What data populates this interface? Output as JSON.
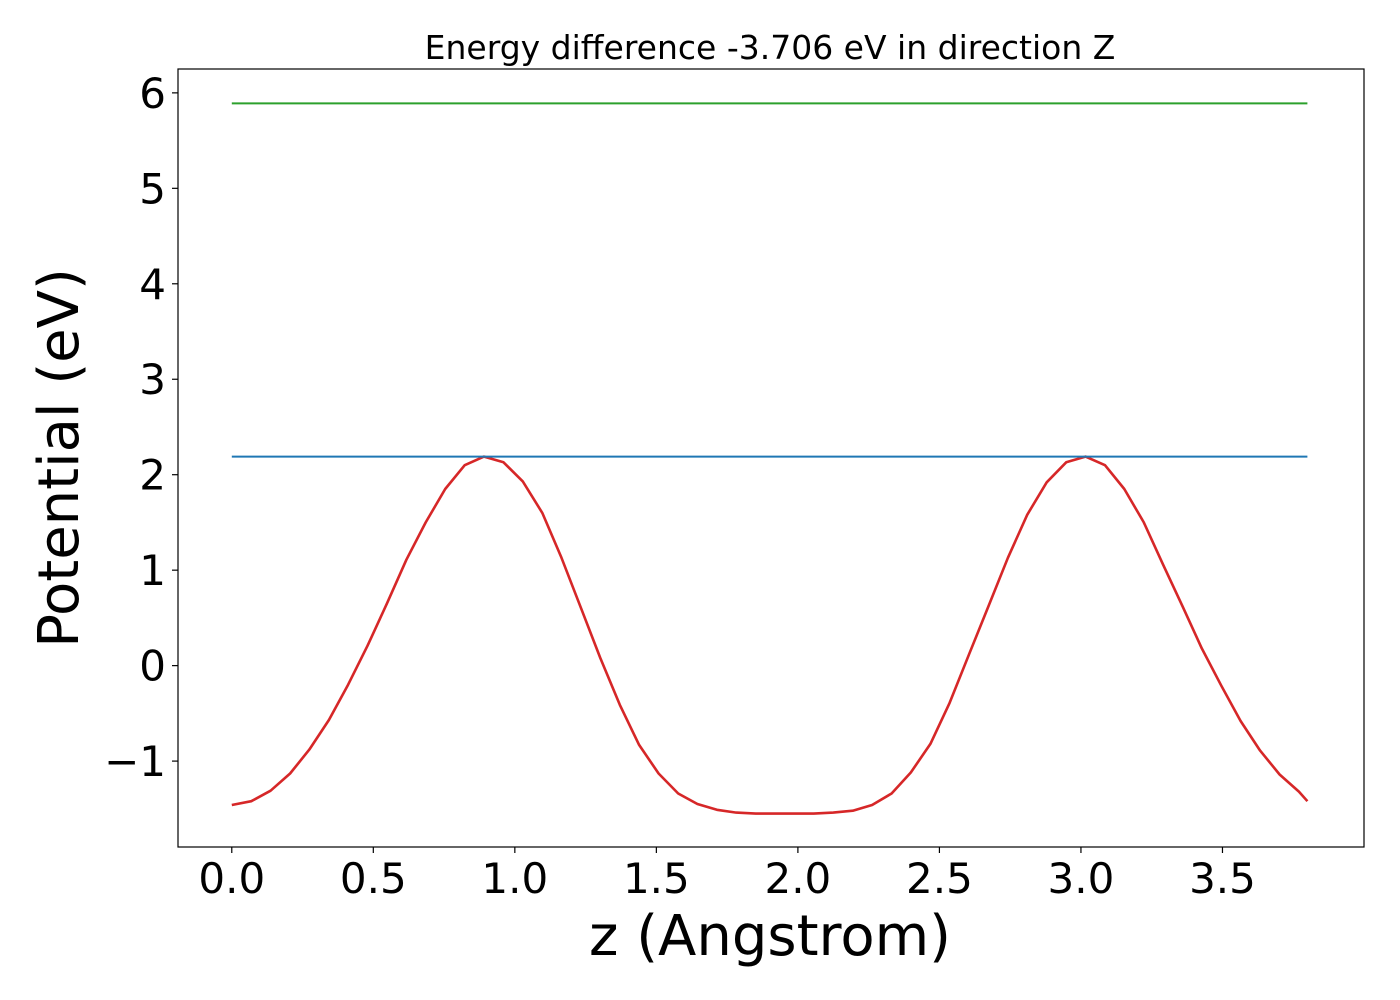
{
  "chart_data": {
    "type": "line",
    "title": "Energy difference -3.706 eV in direction Z",
    "xlabel": "z (Angstrom)",
    "ylabel": "Potential (eV)",
    "xlim": [
      -0.19,
      4.0
    ],
    "ylim": [
      -1.9,
      6.25
    ],
    "xticks": [
      "0.0",
      "0.5",
      "1.0",
      "1.5",
      "2.0",
      "2.5",
      "3.0",
      "3.5"
    ],
    "yticks": [
      "−1",
      "0",
      "1",
      "2",
      "3",
      "4",
      "5",
      "6"
    ],
    "grid": false,
    "series": [
      {
        "color": "#d62728",
        "x": [
          0.0,
          0.069,
          0.137,
          0.206,
          0.274,
          0.343,
          0.411,
          0.48,
          0.548,
          0.617,
          0.685,
          0.754,
          0.823,
          0.891,
          0.96,
          1.028,
          1.097,
          1.165,
          1.234,
          1.302,
          1.371,
          1.439,
          1.508,
          1.577,
          1.645,
          1.714,
          1.782,
          1.851,
          1.919,
          1.988,
          2.056,
          2.125,
          2.194,
          2.262,
          2.331,
          2.399,
          2.468,
          2.536,
          2.605,
          2.673,
          2.742,
          2.81,
          2.879,
          2.948,
          3.016,
          3.085,
          3.153,
          3.222,
          3.29,
          3.359,
          3.427,
          3.496,
          3.564,
          3.633,
          3.702,
          3.77,
          3.8
        ],
        "y": [
          -1.46,
          -1.42,
          -1.31,
          -1.13,
          -0.88,
          -0.57,
          -0.2,
          0.21,
          0.65,
          1.11,
          1.5,
          1.85,
          2.1,
          2.19,
          2.13,
          1.93,
          1.6,
          1.13,
          0.6,
          0.08,
          -0.41,
          -0.83,
          -1.13,
          -1.34,
          -1.45,
          -1.51,
          -1.54,
          -1.55,
          -1.55,
          -1.55,
          -1.55,
          -1.54,
          -1.52,
          -1.46,
          -1.34,
          -1.12,
          -0.82,
          -0.39,
          0.12,
          0.62,
          1.13,
          1.58,
          1.92,
          2.13,
          2.19,
          2.1,
          1.85,
          1.5,
          1.06,
          0.62,
          0.18,
          -0.21,
          -0.58,
          -0.89,
          -1.14,
          -1.32,
          -1.42
        ]
      },
      {
        "color": "#1f77b4",
        "x": [
          0.0,
          3.8
        ],
        "y": [
          2.19,
          2.19
        ]
      },
      {
        "color": "#2ca02c",
        "x": [
          0.0,
          3.8
        ],
        "y": [
          5.89,
          5.89
        ]
      }
    ]
  }
}
